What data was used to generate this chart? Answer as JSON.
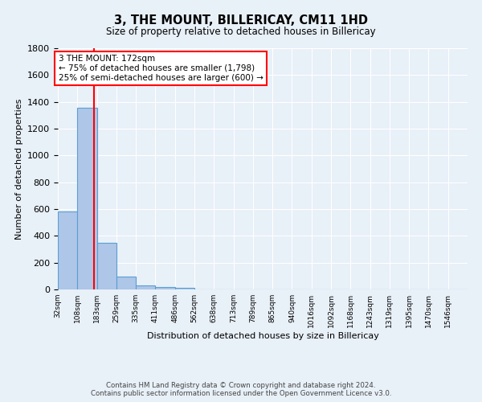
{
  "title": "3, THE MOUNT, BILLERICAY, CM11 1HD",
  "subtitle": "Size of property relative to detached houses in Billericay",
  "xlabel": "Distribution of detached houses by size in Billericay",
  "ylabel": "Number of detached properties",
  "footer_line1": "Contains HM Land Registry data © Crown copyright and database right 2024.",
  "footer_line2": "Contains public sector information licensed under the Open Government Licence v3.0.",
  "bin_labels": [
    "32sqm",
    "108sqm",
    "183sqm",
    "259sqm",
    "335sqm",
    "411sqm",
    "486sqm",
    "562sqm",
    "638sqm",
    "713sqm",
    "789sqm",
    "865sqm",
    "940sqm",
    "1016sqm",
    "1092sqm",
    "1168sqm",
    "1243sqm",
    "1319sqm",
    "1395sqm",
    "1470sqm",
    "1546sqm"
  ],
  "bar_heights": [
    580,
    1355,
    350,
    95,
    30,
    20,
    15,
    0,
    0,
    0,
    0,
    0,
    0,
    0,
    0,
    0,
    0,
    0,
    0,
    0,
    0
  ],
  "bar_color": "#aec6e8",
  "bar_edge_color": "#5a9fd4",
  "background_color": "#e8f0f8",
  "grid_color": "#ffffff",
  "vline_x": 172,
  "vline_color": "red",
  "annotation_text": "3 THE MOUNT: 172sqm\n← 75% of detached houses are smaller (1,798)\n25% of semi-detached houses are larger (600) →",
  "annotation_box_color": "white",
  "annotation_box_edge_color": "red",
  "ylim": [
    0,
    1800
  ],
  "yticks": [
    0,
    200,
    400,
    600,
    800,
    1000,
    1200,
    1400,
    1600,
    1800
  ]
}
